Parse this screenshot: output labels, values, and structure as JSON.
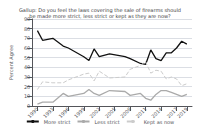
{
  "chart_data": {
    "type": "line",
    "title": "Gallup: Do you feel the laws covering the sale of firearms should\nbe made more strict, less strict or kept as they are now?",
    "y_label": "Percent Agree",
    "x": [
      1990,
      1991,
      1993,
      1995,
      1996,
      1999,
      2000,
      2001,
      2002,
      2004,
      2007,
      2008,
      2010,
      2011,
      2012,
      2013,
      2014,
      2015,
      2016,
      2017,
      2018,
      2019
    ],
    "series": [
      {
        "name": "More strict",
        "color": "#111111",
        "line_style": "solid",
        "values": [
          78,
          68,
          70,
          62,
          60,
          51,
          47,
          59,
          51,
          54,
          51,
          49,
          44,
          43,
          58,
          49,
          47,
          55,
          55,
          60,
          67,
          64
        ]
      },
      {
        "name": "Less strict",
        "color": "#aaaaaa",
        "line_style": "solid",
        "values": [
          2,
          4,
          4,
          13,
          10,
          13,
          17,
          13,
          11,
          16,
          15,
          11,
          13,
          8,
          6,
          12,
          16,
          16,
          14,
          12,
          10,
          12
        ]
      },
      {
        "name": "Kept as now",
        "color": "#cccccc",
        "line_style": "dashed",
        "values": [
          17,
          25,
          24,
          24,
          27,
          33,
          34,
          26,
          36,
          29,
          30,
          38,
          42,
          46,
          34,
          37,
          36,
          28,
          30,
          28,
          21,
          23
        ]
      }
    ],
    "xlim": [
      1989,
      2020
    ],
    "xticks": [
      1990,
      1993,
      1996,
      1999,
      2002,
      2005,
      2008,
      2011,
      2014,
      2017,
      2019
    ],
    "ylim": [
      0,
      90
    ],
    "yticks": [
      0,
      10,
      20,
      30,
      40,
      50,
      60,
      70,
      80,
      90
    ],
    "grid": true,
    "legend": "bottom"
  }
}
